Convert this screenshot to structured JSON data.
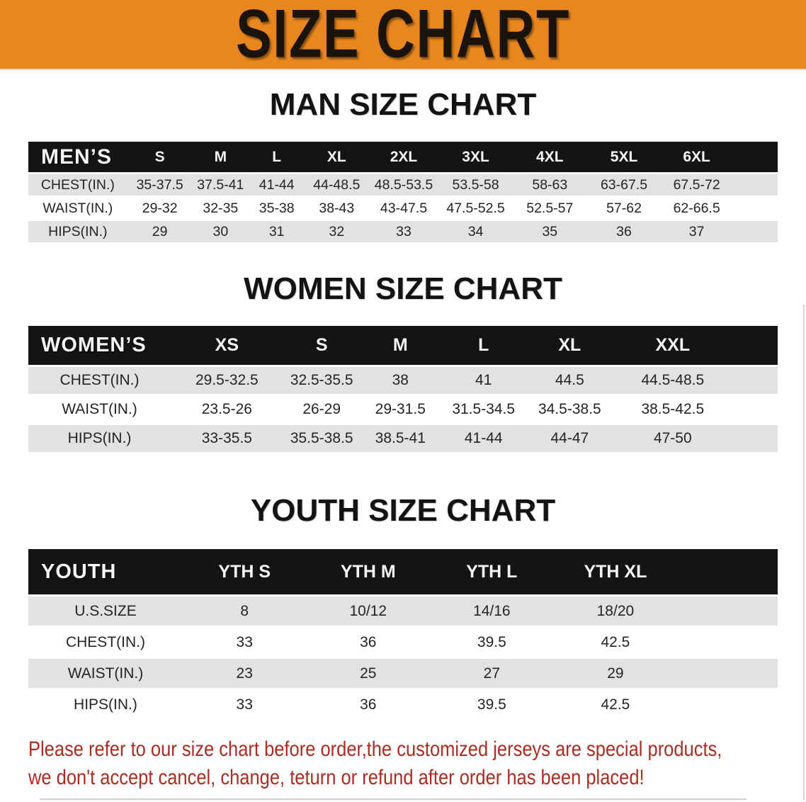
{
  "banner": {
    "title": "SIZE CHART"
  },
  "colors": {
    "banner_bg": "#E8871E",
    "header_band": "#141414",
    "row_stripe": "#E2E2E2",
    "disclaimer_text": "#AC2B22"
  },
  "sections": [
    {
      "heading": "MAN SIZE CHART",
      "table": {
        "label": "MEN’S",
        "sizes": [
          "S",
          "M",
          "L",
          "XL",
          "2XL",
          "3XL",
          "4XL",
          "5XL",
          "6XL"
        ],
        "rows": [
          {
            "label": "CHEST(IN.)",
            "values": [
              "35-37.5",
              "37.5-41",
              "41-44",
              "44-48.5",
              "48.5-53.5",
              "53.5-58",
              "58-63",
              "63-67.5",
              "67.5-72"
            ]
          },
          {
            "label": "WAIST(IN.)",
            "values": [
              "29-32",
              "32-35",
              "35-38",
              "38-43",
              "43-47.5",
              "47.5-52.5",
              "52.5-57",
              "57-62",
              "62-66.5"
            ]
          },
          {
            "label": "HIPS(IN.)",
            "values": [
              "29",
              "30",
              "31",
              "32",
              "33",
              "34",
              "35",
              "36",
              "37"
            ]
          }
        ]
      }
    },
    {
      "heading": "WOMEN SIZE CHART",
      "table": {
        "label": "WOMEN’S",
        "sizes": [
          "XS",
          "S",
          "M",
          "L",
          "XL",
          "XXL"
        ],
        "rows": [
          {
            "label": "CHEST(IN.)",
            "values": [
              "29.5-32.5",
              "32.5-35.5",
              "38",
              "41",
              "44.5",
              "44.5-48.5"
            ]
          },
          {
            "label": "WAIST(IN.)",
            "values": [
              "23.5-26",
              "26-29",
              "29-31.5",
              "31.5-34.5",
              "34.5-38.5",
              "38.5-42.5"
            ]
          },
          {
            "label": "HIPS(IN.)",
            "values": [
              "33-35.5",
              "35.5-38.5",
              "38.5-41",
              "41-44",
              "44-47",
              "47-50"
            ]
          }
        ]
      }
    },
    {
      "heading": "YOUTH SIZE CHART",
      "table": {
        "label": "YOUTH",
        "sizes": [
          "YTH S",
          "YTH M",
          "YTH L",
          "YTH XL"
        ],
        "rows": [
          {
            "label": "U.S.SIZE",
            "values": [
              "8",
              "10/12",
              "14/16",
              "18/20"
            ]
          },
          {
            "label": "CHEST(IN.)",
            "values": [
              "33",
              "36",
              "39.5",
              "42.5"
            ]
          },
          {
            "label": "WAIST(IN.)",
            "values": [
              "23",
              "25",
              "27",
              "29"
            ]
          },
          {
            "label": "HIPS(IN.)",
            "values": [
              "33",
              "36",
              "39.5",
              "42.5"
            ]
          }
        ]
      }
    }
  ],
  "disclaimer": {
    "line1": "Please refer to our size chart before order,the customized jerseys are special products,",
    "line2": "we don't accept cancel, change, teturn or refund after order has been placed!"
  }
}
